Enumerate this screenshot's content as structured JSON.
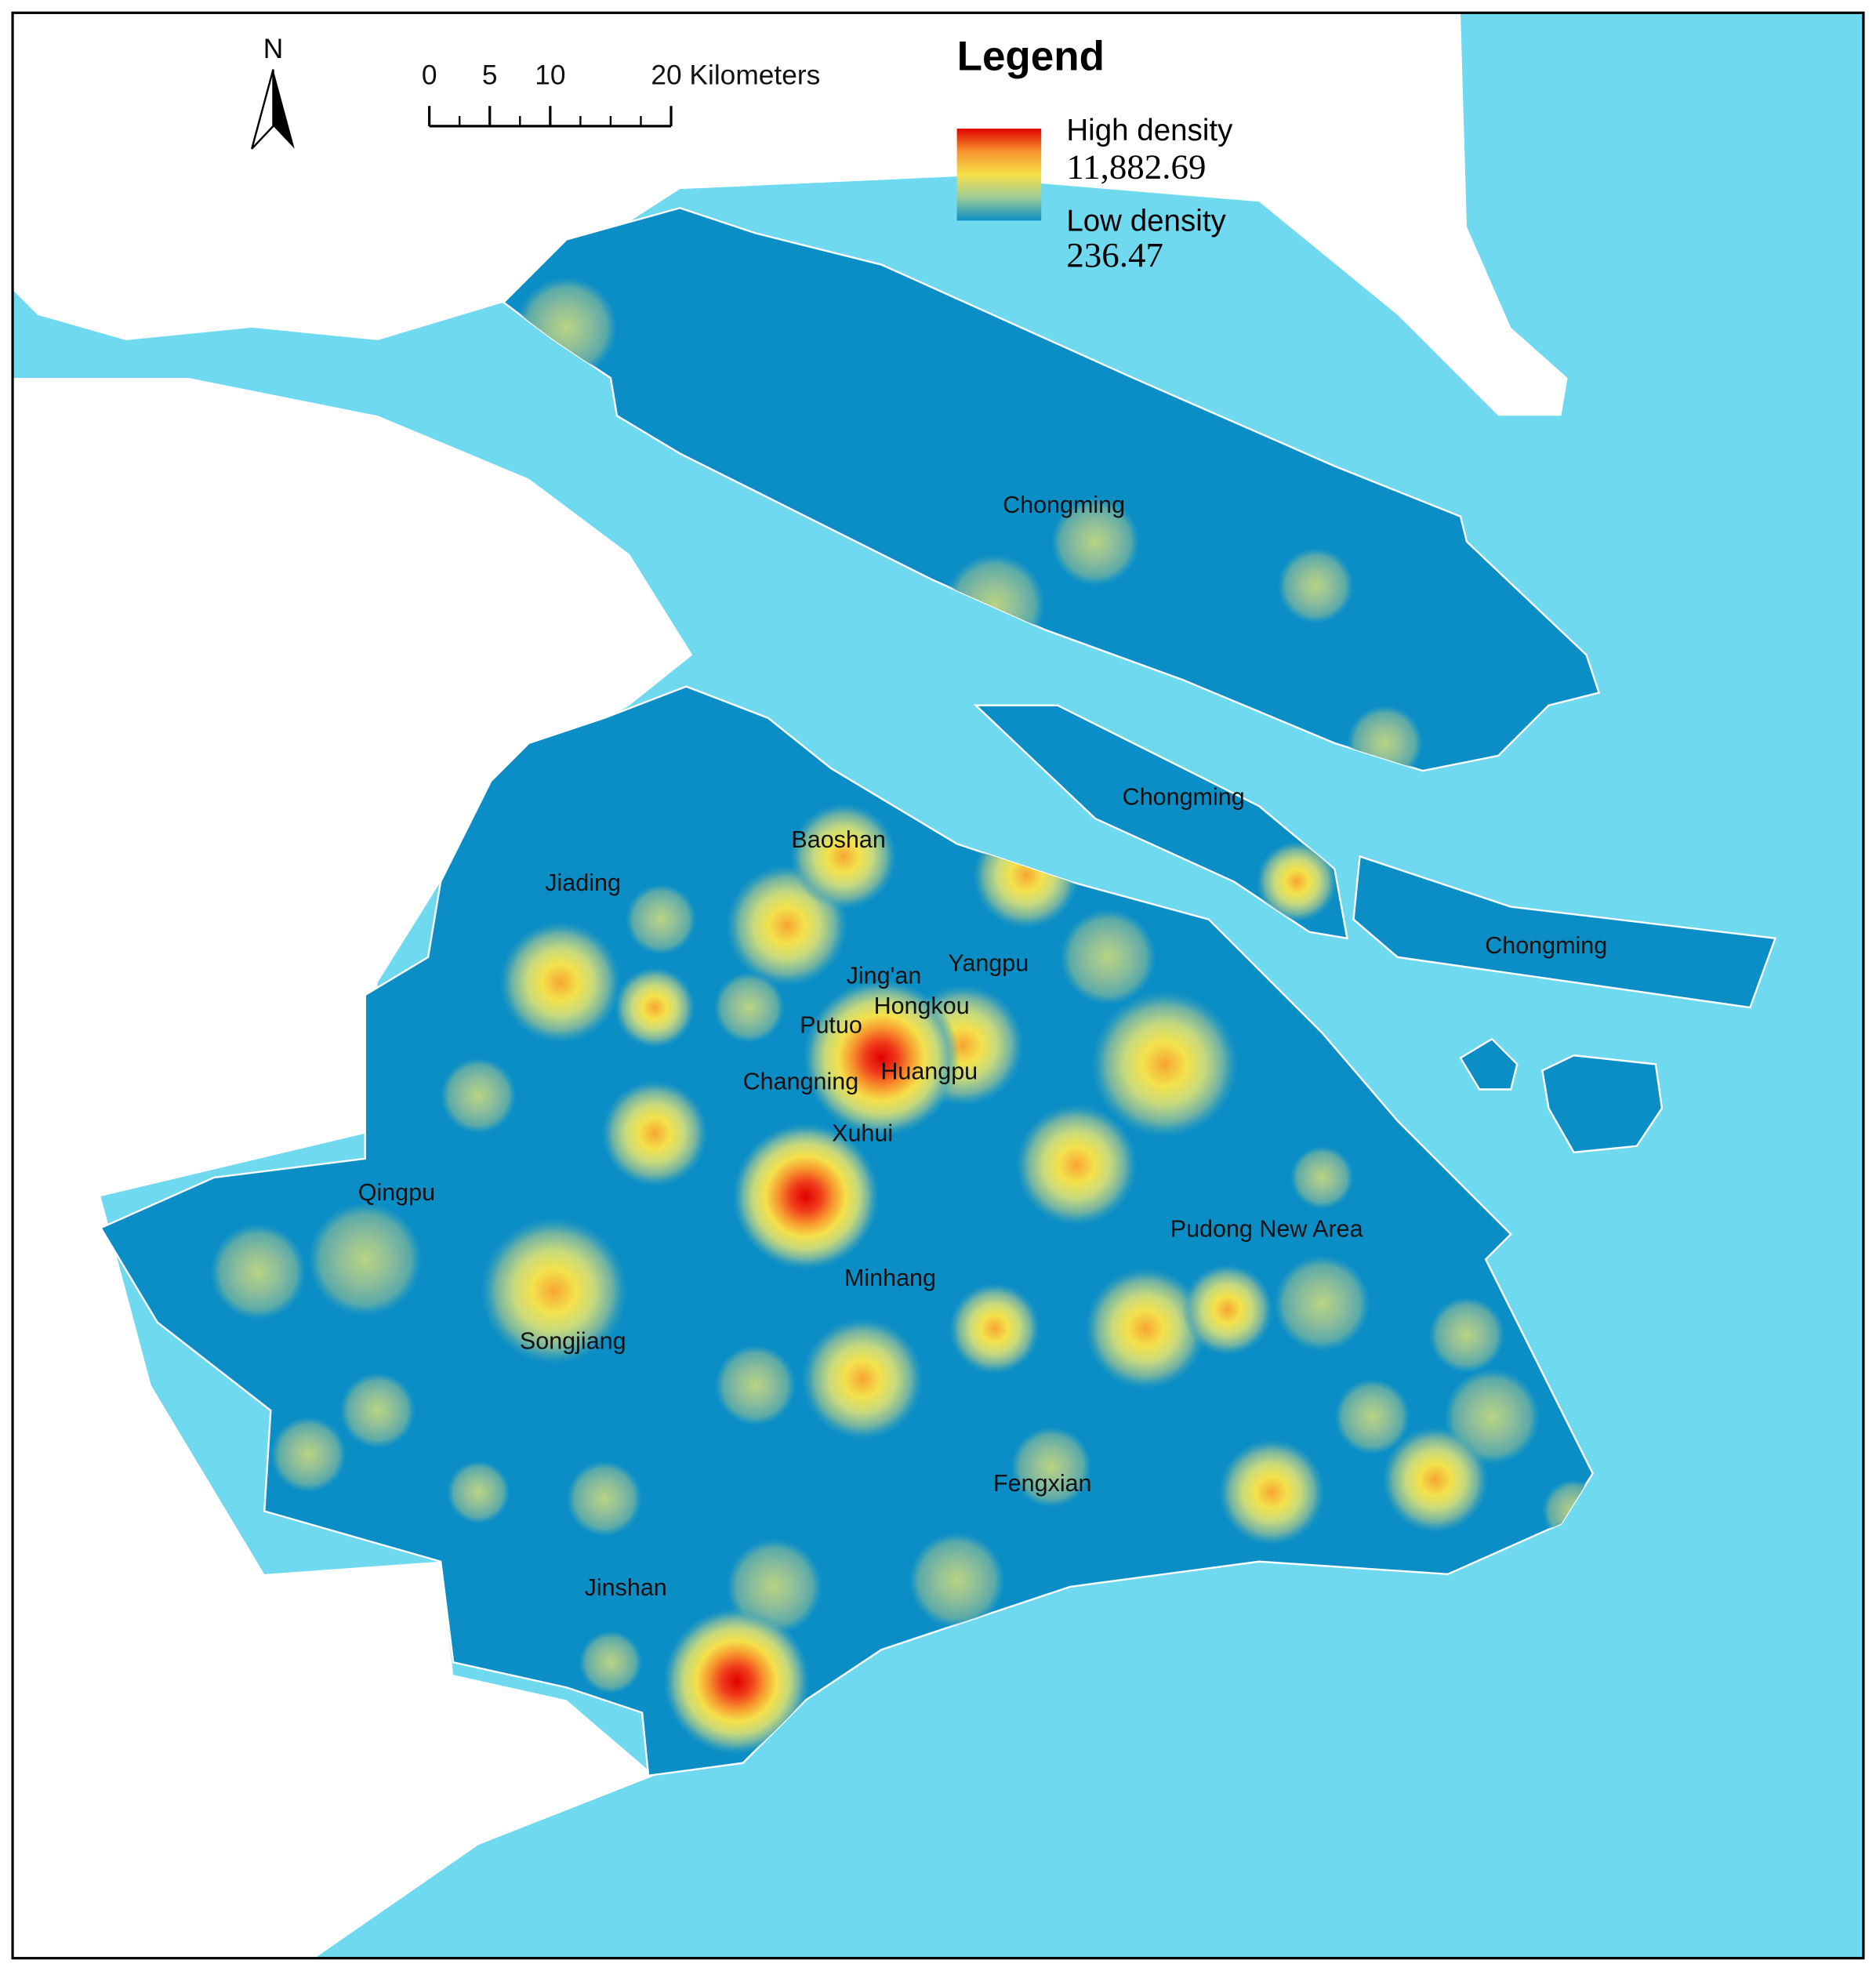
{
  "north": "N",
  "scale_bar": {
    "ticks": [
      0,
      5,
      10,
      {
        "value": 20,
        "label": "20 Kilometers"
      }
    ]
  },
  "legend": {
    "title": "Legend",
    "high_label": "High density",
    "high_value": "11,882.69",
    "low_label": "Low density",
    "low_value": "236.47"
  },
  "districts": [
    "Chongming",
    "Chongming",
    "Chongming",
    "Baoshan",
    "Jiading",
    "Jing'an",
    "Yangpu",
    "Hongkou",
    "Putuo",
    "Huangpu",
    "Changning",
    "Xuhui",
    "Qingpu",
    "Pudong New Area",
    "Minhang",
    "Songjiang",
    "Fengxian",
    "Jinshan"
  ]
}
